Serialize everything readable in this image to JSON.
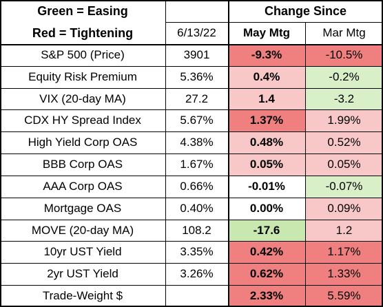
{
  "header": {
    "legend_green": "Green = Easing",
    "legend_red": "Red = Tightening",
    "change_since": "Change Since",
    "date": "6/13/22",
    "may_mtg": "May Mtg",
    "mar_mtg": "Mar Mtg"
  },
  "colors": {
    "red_strong": "#f08080",
    "red_light": "#f8c8c8",
    "green_light": "#d8efc8",
    "green_mid": "#c8e8b0",
    "white": "#ffffff"
  },
  "rows": [
    {
      "label": "S&P 500 (Price)",
      "value": "3901",
      "may": "-9.3%",
      "mar": "-10.5%",
      "may_color": "red_strong",
      "mar_color": "red_strong"
    },
    {
      "label": "Equity Risk Premium",
      "value": "5.36%",
      "may": "0.4%",
      "mar": "-0.2%",
      "may_color": "red_light",
      "mar_color": "green_light"
    },
    {
      "label": "VIX (20-day MA)",
      "value": "27.2",
      "may": "1.4",
      "mar": "-3.2",
      "may_color": "red_light",
      "mar_color": "green_light"
    },
    {
      "label": "CDX HY Spread Index",
      "value": "5.67%",
      "may": "1.37%",
      "mar": "1.99%",
      "may_color": "red_strong",
      "mar_color": "red_light"
    },
    {
      "label": "High Yield Corp OAS",
      "value": "4.38%",
      "may": "0.48%",
      "mar": "0.52%",
      "may_color": "red_light",
      "mar_color": "red_light"
    },
    {
      "label": "BBB Corp OAS",
      "value": "1.67%",
      "may": "0.05%",
      "mar": "0.05%",
      "may_color": "red_light",
      "mar_color": "red_light"
    },
    {
      "label": "AAA Corp OAS",
      "value": "0.66%",
      "may": "-0.01%",
      "mar": "-0.07%",
      "may_color": "white",
      "mar_color": "green_light"
    },
    {
      "label": "Mortgage OAS",
      "value": "0.40%",
      "may": "0.00%",
      "mar": "0.09%",
      "may_color": "white",
      "mar_color": "red_light"
    },
    {
      "label": "MOVE (20-day MA)",
      "value": "108.2",
      "may": "-17.6",
      "mar": "1.2",
      "may_color": "green_mid",
      "mar_color": "red_light"
    },
    {
      "label": "10yr UST Yield",
      "value": "3.35%",
      "may": "0.42%",
      "mar": "1.17%",
      "may_color": "red_strong",
      "mar_color": "red_strong"
    },
    {
      "label": "2yr UST Yield",
      "value": "3.26%",
      "may": "0.62%",
      "mar": "1.33%",
      "may_color": "red_strong",
      "mar_color": "red_strong"
    },
    {
      "label": "Trade-Weight $",
      "value": "",
      "may": "2.33%",
      "mar": "5.59%",
      "may_color": "red_strong",
      "mar_color": "red_strong"
    }
  ]
}
